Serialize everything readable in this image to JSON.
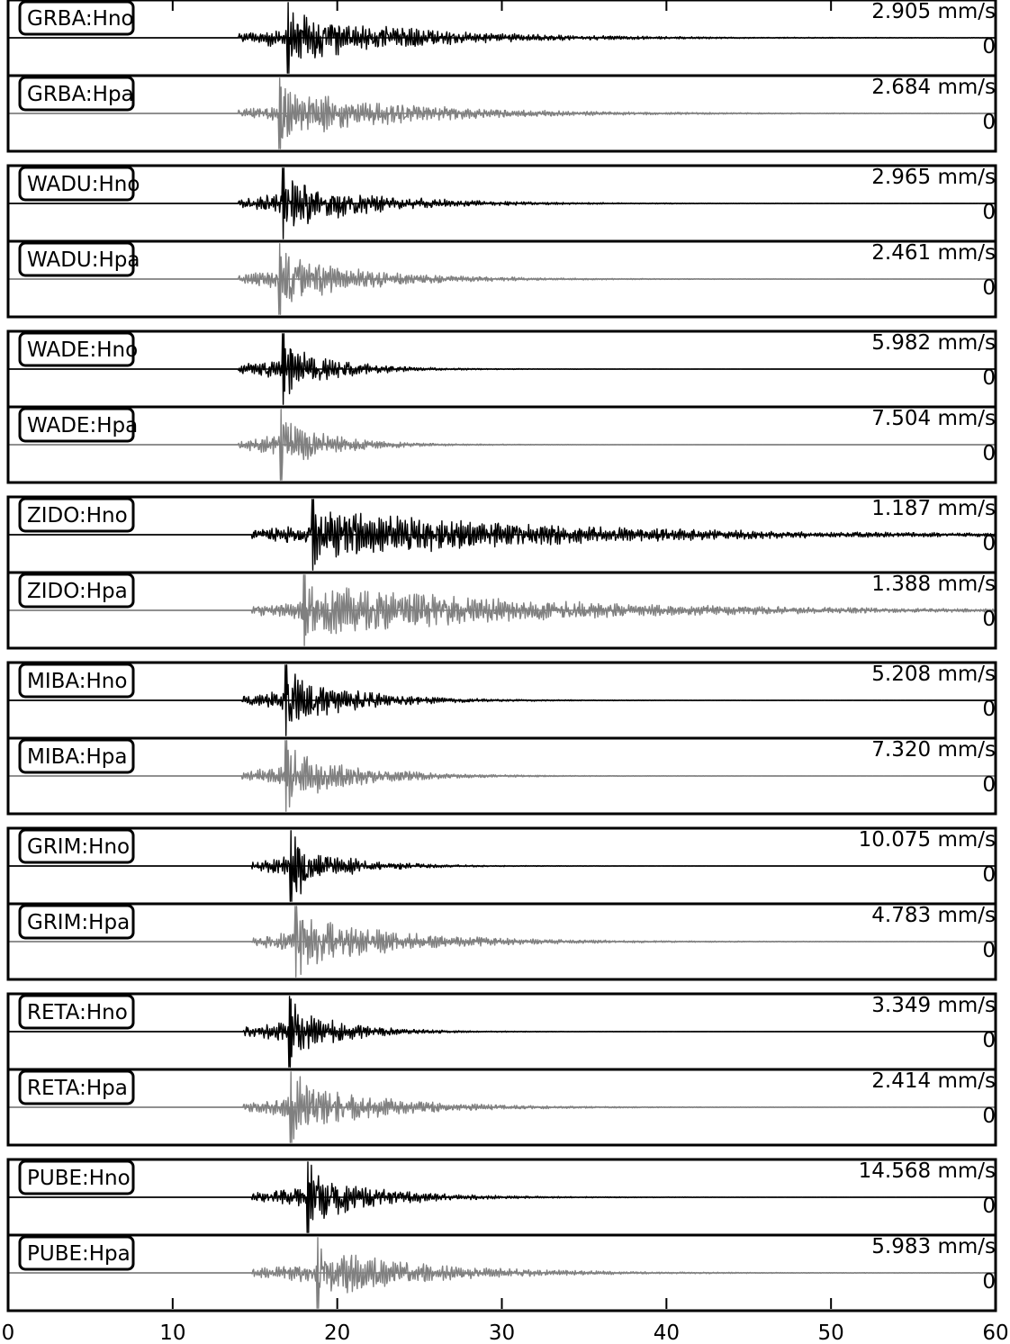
{
  "chart_data": {
    "type": "line",
    "x_axis": {
      "min": 0,
      "max": 60,
      "ticks": [
        0,
        10,
        20,
        30,
        40,
        50,
        60
      ],
      "tick_labels": [
        "0",
        "10",
        "20",
        "30",
        "40",
        "50",
        "60"
      ]
    },
    "zero_label": "0",
    "colors": {
      "Hno": "#000000",
      "Hpa": "#808080",
      "frame": "#000000"
    },
    "stations": [
      {
        "name": "GRBA",
        "traces": [
          {
            "channel": "GRBA:Hno",
            "amplitude": "2.905 mm/s",
            "onset": 14.0,
            "peak": 17.0,
            "decay": 7,
            "clipped_top": true
          },
          {
            "channel": "GRBA:Hpa",
            "amplitude": "2.684 mm/s",
            "onset": 14.0,
            "peak": 16.5,
            "decay": 7
          }
        ]
      },
      {
        "name": "WADU",
        "traces": [
          {
            "channel": "WADU:Hno",
            "amplitude": "2.965 mm/s",
            "onset": 14.0,
            "peak": 16.7,
            "decay": 5
          },
          {
            "channel": "WADU:Hpa",
            "amplitude": "2.461 mm/s",
            "onset": 14.0,
            "peak": 16.5,
            "decay": 5
          }
        ]
      },
      {
        "name": "WADE",
        "traces": [
          {
            "channel": "WADE:Hno",
            "amplitude": "5.982 mm/s",
            "onset": 14.0,
            "peak": 16.7,
            "decay": 3
          },
          {
            "channel": "WADE:Hpa",
            "amplitude": "7.504 mm/s",
            "onset": 14.0,
            "peak": 16.6,
            "decay": 3
          }
        ]
      },
      {
        "name": "ZIDO",
        "traces": [
          {
            "channel": "ZIDO:Hno",
            "amplitude": "1.187 mm/s",
            "onset": 14.8,
            "peak": 18.5,
            "decay": 14
          },
          {
            "channel": "ZIDO:Hpa",
            "amplitude": "1.388 mm/s",
            "onset": 14.8,
            "peak": 18.0,
            "decay": 14
          }
        ]
      },
      {
        "name": "MIBA",
        "traces": [
          {
            "channel": "MIBA:Hno",
            "amplitude": "5.208 mm/s",
            "onset": 14.2,
            "peak": 16.9,
            "decay": 4
          },
          {
            "channel": "MIBA:Hpa",
            "amplitude": "7.320 mm/s",
            "onset": 14.2,
            "peak": 16.9,
            "decay": 4
          }
        ]
      },
      {
        "name": "GRIM",
        "traces": [
          {
            "channel": "GRIM:Hno",
            "amplitude": "10.075 mm/s",
            "onset": 14.8,
            "peak": 17.2,
            "decay": 3
          },
          {
            "channel": "GRIM:Hpa",
            "amplitude": "4.783 mm/s",
            "onset": 14.8,
            "peak": 17.5,
            "decay": 6
          }
        ]
      },
      {
        "name": "RETA",
        "traces": [
          {
            "channel": "RETA:Hno",
            "amplitude": "3.349 mm/s",
            "onset": 14.3,
            "peak": 17.1,
            "decay": 3
          },
          {
            "channel": "RETA:Hpa",
            "amplitude": "2.414 mm/s",
            "onset": 14.3,
            "peak": 17.2,
            "decay": 5
          }
        ]
      },
      {
        "name": "PUBE",
        "traces": [
          {
            "channel": "PUBE:Hno",
            "amplitude": "14.568 mm/s",
            "onset": 14.8,
            "peak": 18.2,
            "decay": 4
          },
          {
            "channel": "PUBE:Hpa",
            "amplitude": "5.983 mm/s",
            "onset": 14.8,
            "peak": 18.8,
            "decay": 6
          }
        ]
      }
    ]
  }
}
